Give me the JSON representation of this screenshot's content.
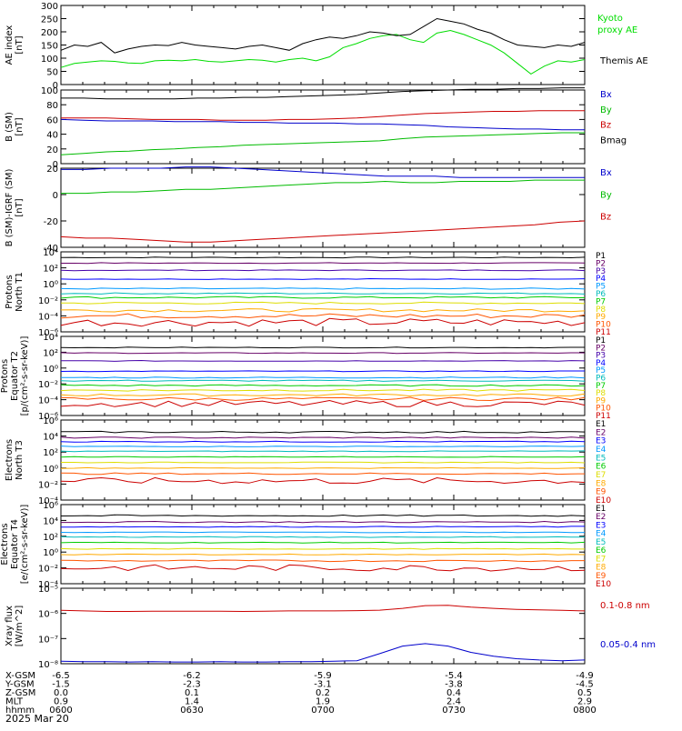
{
  "chart_data": {
    "type": "line",
    "title": "",
    "date_label": "2025 Mar 20",
    "x_ticks": [
      "0600",
      "0630",
      "0700",
      "0730",
      "0800"
    ],
    "x_minor_count": 6,
    "orbit_rows": [
      {
        "label": "X-GSM",
        "values": [
          "-6.5",
          "-6.2",
          "-5.9",
          "-5.4",
          "-4.9"
        ]
      },
      {
        "label": "Y-GSM",
        "values": [
          "-1.5",
          "-2.3",
          "-3.1",
          "-3.8",
          "-4.5"
        ]
      },
      {
        "label": "Z-GSM",
        "values": [
          "0.0",
          "0.1",
          "0.2",
          "0.4",
          "0.5"
        ]
      },
      {
        "label": "MLT",
        "values": [
          "0.9",
          "1.4",
          "1.9",
          "2.4",
          "2.9"
        ]
      },
      {
        "label": "hhmm",
        "values": [
          "0600",
          "0630",
          "0700",
          "0730",
          "0800"
        ]
      }
    ],
    "panels": [
      {
        "id": "ae",
        "ylabel": [
          "AE index",
          "[nT]"
        ],
        "scale": "linear",
        "ylim": [
          0,
          300
        ],
        "yticks": [
          "0",
          "50",
          "100",
          "150",
          "200",
          "250",
          "300"
        ],
        "ytick_values": [
          0,
          50,
          100,
          150,
          200,
          250,
          300
        ],
        "series": [
          {
            "name": "Kyoto proxy AE",
            "legend": [
              "Kyoto",
              "proxy AE"
            ],
            "color": "#00dd00",
            "values": [
              65,
              80,
              85,
              90,
              88,
              82,
              80,
              90,
              92,
              90,
              95,
              88,
              85,
              90,
              95,
              92,
              85,
              95,
              100,
              90,
              105,
              140,
              155,
              175,
              185,
              190,
              170,
              160,
              195,
              205,
              190,
              170,
              150,
              120,
              80,
              40,
              70,
              90,
              85,
              95
            ]
          },
          {
            "name": "Themis AE",
            "legend": [
              "Themis AE"
            ],
            "color": "#000000",
            "values": [
              130,
              150,
              145,
              160,
              120,
              135,
              145,
              150,
              148,
              160,
              150,
              145,
              140,
              135,
              145,
              150,
              140,
              130,
              155,
              170,
              180,
              175,
              185,
              200,
              195,
              185,
              190,
              220,
              250,
              240,
              230,
              210,
              195,
              170,
              150,
              145,
              140,
              150,
              145,
              160
            ]
          }
        ]
      },
      {
        "id": "bsm",
        "ylabel": [
          "B (SM)",
          "[nT]"
        ],
        "scale": "linear",
        "ylim": [
          0,
          100
        ],
        "yticks": [
          "0",
          "20",
          "40",
          "60",
          "80",
          "100"
        ],
        "ytick_values": [
          0,
          20,
          40,
          60,
          80,
          100
        ],
        "series": [
          {
            "name": "Bx",
            "color": "#0000cc",
            "values": [
              60,
              59,
              58,
              58,
              58,
              57,
              57,
              57,
              56,
              56,
              55,
              55,
              55,
              54,
              54,
              53,
              52,
              50,
              49,
              48,
              47,
              47,
              46,
              46
            ]
          },
          {
            "name": "By",
            "color": "#00bb00",
            "values": [
              12,
              14,
              16,
              17,
              19,
              20,
              22,
              23,
              25,
              26,
              27,
              28,
              29,
              30,
              31,
              34,
              36,
              37,
              38,
              39,
              40,
              41,
              42,
              42
            ]
          },
          {
            "name": "Bz",
            "color": "#cc0000",
            "values": [
              62,
              62,
              62,
              61,
              60,
              60,
              60,
              59,
              59,
              59,
              60,
              60,
              61,
              62,
              64,
              66,
              68,
              69,
              70,
              71,
              71,
              72,
              72,
              72
            ]
          },
          {
            "name": "Bmag",
            "color": "#000000",
            "values": [
              89,
              89,
              88,
              88,
              88,
              88,
              89,
              89,
              90,
              90,
              91,
              92,
              93,
              94,
              96,
              98,
              99,
              100,
              101,
              101,
              102,
              102,
              103,
              103
            ]
          }
        ]
      },
      {
        "id": "bigrf",
        "ylabel": [
          "B (SM)-IGRF (SM)",
          "[nT]"
        ],
        "scale": "linear",
        "ylim": [
          -40,
          20
        ],
        "yticks": [
          "-40",
          "-20",
          "0",
          "20"
        ],
        "ytick_values": [
          -40,
          -20,
          0,
          20
        ],
        "series": [
          {
            "name": "Bx",
            "color": "#0000cc",
            "values": [
              19,
              19,
              20,
              20,
              20,
              21,
              21,
              20,
              19,
              18,
              17,
              16,
              15,
              14,
              14,
              14,
              13,
              13,
              13,
              13,
              13,
              13
            ]
          },
          {
            "name": "By",
            "color": "#00bb00",
            "values": [
              1,
              1,
              2,
              2,
              3,
              4,
              4,
              5,
              6,
              7,
              8,
              9,
              9,
              10,
              9,
              9,
              10,
              10,
              10,
              11,
              11,
              11
            ]
          },
          {
            "name": "Bz",
            "color": "#cc0000",
            "values": [
              -32,
              -33,
              -33,
              -34,
              -35,
              -36,
              -36,
              -35,
              -34,
              -33,
              -32,
              -31,
              -30,
              -29,
              -28,
              -27,
              -26,
              -25,
              -24,
              -23,
              -21,
              -20
            ]
          }
        ]
      },
      {
        "id": "pn",
        "ylabel": [
          "Protons",
          "North T1"
        ],
        "scale": "log",
        "ylim": [
          -6,
          4
        ],
        "yticks": [
          "10⁻⁶",
          "10⁻⁴",
          "10⁻²",
          "10⁰",
          "10²",
          "10⁴"
        ],
        "ytick_values": [
          -6,
          -4,
          -2,
          0,
          2,
          4
        ],
        "channels": [
          {
            "name": "P1",
            "color": "#000000",
            "level": 3.3,
            "noise": 0.05
          },
          {
            "name": "P2",
            "color": "#660066",
            "level": 2.6,
            "noise": 0.05
          },
          {
            "name": "P3",
            "color": "#4400aa",
            "level": 1.7,
            "noise": 0.05
          },
          {
            "name": "P4",
            "color": "#0000ff",
            "level": 0.6,
            "noise": 0.05
          },
          {
            "name": "P5",
            "color": "#0099ff",
            "level": -0.6,
            "noise": 0.08
          },
          {
            "name": "P6",
            "color": "#00bbbb",
            "level": -1.2,
            "noise": 0.08
          },
          {
            "name": "P7",
            "color": "#00cc00",
            "level": -1.7,
            "noise": 0.12
          },
          {
            "name": "P8",
            "color": "#dddd00",
            "level": -2.4,
            "noise": 0.12
          },
          {
            "name": "P9",
            "color": "#ffaa00",
            "level": -3.3,
            "noise": 0.2
          },
          {
            "name": "P10",
            "color": "#ff5500",
            "level": -4.0,
            "noise": 0.3
          },
          {
            "name": "P11",
            "color": "#cc0000",
            "level": -4.8,
            "noise": 0.5
          }
        ]
      },
      {
        "id": "pe",
        "ylabel": [
          "Protons",
          "Equator T2",
          "[p/(cm²-s-sr-keV)]"
        ],
        "scale": "log",
        "ylim": [
          -6,
          4
        ],
        "yticks": [
          "10⁻⁶",
          "10⁻⁴",
          "10⁻²",
          "10⁰",
          "10²",
          "10⁴"
        ],
        "ytick_values": [
          -6,
          -4,
          -2,
          0,
          2,
          4
        ],
        "channels": [
          {
            "name": "P1",
            "color": "#000000",
            "level": 2.6,
            "noise": 0.05
          },
          {
            "name": "P2",
            "color": "#660066",
            "level": 1.9,
            "noise": 0.05
          },
          {
            "name": "P3",
            "color": "#4400aa",
            "level": 0.9,
            "noise": 0.05
          },
          {
            "name": "P4",
            "color": "#0000ff",
            "level": -0.4,
            "noise": 0.05
          },
          {
            "name": "P5",
            "color": "#0099ff",
            "level": -1.2,
            "noise": 0.08
          },
          {
            "name": "P6",
            "color": "#00bbbb",
            "level": -1.6,
            "noise": 0.08
          },
          {
            "name": "P7",
            "color": "#00cc00",
            "level": -2.2,
            "noise": 0.1
          },
          {
            "name": "P8",
            "color": "#dddd00",
            "level": -2.8,
            "noise": 0.12
          },
          {
            "name": "P9",
            "color": "#ffaa00",
            "level": -3.4,
            "noise": 0.15
          },
          {
            "name": "P10",
            "color": "#ff5500",
            "level": -3.9,
            "noise": 0.2
          },
          {
            "name": "P11",
            "color": "#cc0000",
            "level": -4.5,
            "noise": 0.4
          }
        ]
      },
      {
        "id": "en",
        "ylabel": [
          "Electrons",
          "North T3"
        ],
        "scale": "log",
        "ylim": [
          -4,
          6
        ],
        "yticks": [
          "10⁻⁴",
          "10⁻²",
          "10⁰",
          "10²",
          "10⁴",
          "10⁶"
        ],
        "ytick_values": [
          -4,
          -2,
          0,
          2,
          4,
          6
        ],
        "channels": [
          {
            "name": "E1",
            "color": "#000000",
            "level": 4.5,
            "noise": 0.1
          },
          {
            "name": "E2",
            "color": "#660066",
            "level": 3.8,
            "noise": 0.08
          },
          {
            "name": "E3",
            "color": "#0000ff",
            "level": 3.3,
            "noise": 0.06
          },
          {
            "name": "E4",
            "color": "#0099ff",
            "level": 2.7,
            "noise": 0.05
          },
          {
            "name": "E5",
            "color": "#00bbbb",
            "level": 2.1,
            "noise": 0.05
          },
          {
            "name": "E6",
            "color": "#00cc00",
            "level": 1.4,
            "noise": 0.05
          },
          {
            "name": "E7",
            "color": "#dddd00",
            "level": 0.7,
            "noise": 0.05
          },
          {
            "name": "E8",
            "color": "#ffaa00",
            "level": 0.0,
            "noise": 0.05
          },
          {
            "name": "E9",
            "color": "#ff5500",
            "level": -0.7,
            "noise": 0.1
          },
          {
            "name": "E10",
            "color": "#cc0000",
            "level": -1.6,
            "noise": 0.4
          }
        ]
      },
      {
        "id": "ee",
        "ylabel": [
          "Electrons",
          "Equator T4",
          "[e/(cm²-s-sr-keV)]"
        ],
        "scale": "log",
        "ylim": [
          -4,
          6
        ],
        "yticks": [
          "10⁻⁴",
          "10⁻²",
          "10⁰",
          "10²",
          "10⁴",
          "10⁶"
        ],
        "ytick_values": [
          -4,
          -2,
          0,
          2,
          4,
          6
        ],
        "channels": [
          {
            "name": "E1",
            "color": "#000000",
            "level": 4.6,
            "noise": 0.1
          },
          {
            "name": "E2",
            "color": "#660066",
            "level": 3.8,
            "noise": 0.08
          },
          {
            "name": "E3",
            "color": "#0000ff",
            "level": 3.2,
            "noise": 0.06
          },
          {
            "name": "E4",
            "color": "#0099ff",
            "level": 2.5,
            "noise": 0.05
          },
          {
            "name": "E5",
            "color": "#00bbbb",
            "level": 1.9,
            "noise": 0.05
          },
          {
            "name": "E6",
            "color": "#00cc00",
            "level": 1.2,
            "noise": 0.05
          },
          {
            "name": "E7",
            "color": "#dddd00",
            "level": 0.4,
            "noise": 0.05
          },
          {
            "name": "E8",
            "color": "#ffaa00",
            "level": -0.3,
            "noise": 0.05
          },
          {
            "name": "E9",
            "color": "#ff5500",
            "level": -1.1,
            "noise": 0.1
          },
          {
            "name": "E10",
            "color": "#cc0000",
            "level": -2.0,
            "noise": 0.4
          }
        ]
      },
      {
        "id": "xray",
        "ylabel": [
          "Xray flux",
          "[W/m^2]"
        ],
        "scale": "log",
        "ylim": [
          -8,
          -5
        ],
        "yticks": [
          "10⁻⁸",
          "10⁻⁷",
          "10⁻⁶",
          "10⁻⁵"
        ],
        "ytick_values": [
          -8,
          -7,
          -6,
          -5
        ],
        "series": [
          {
            "name": "0.1-0.8 nm",
            "color": "#cc0000",
            "values": [
              -5.88,
              -5.9,
              -5.92,
              -5.92,
              -5.91,
              -5.91,
              -5.91,
              -5.91,
              -5.92,
              -5.91,
              -5.9,
              -5.9,
              -5.9,
              -5.89,
              -5.87,
              -5.8,
              -5.69,
              -5.68,
              -5.75,
              -5.8,
              -5.84,
              -5.86,
              -5.88,
              -5.9
            ]
          },
          {
            "name": "0.05-0.4 nm",
            "color": "#0000cc",
            "values": [
              -7.9,
              -7.92,
              -7.92,
              -7.93,
              -7.92,
              -7.93,
              -7.93,
              -7.92,
              -7.93,
              -7.93,
              -7.92,
              -7.92,
              -7.9,
              -7.88,
              -7.6,
              -7.3,
              -7.2,
              -7.3,
              -7.55,
              -7.7,
              -7.8,
              -7.85,
              -7.88,
              -7.85
            ]
          }
        ]
      }
    ]
  }
}
